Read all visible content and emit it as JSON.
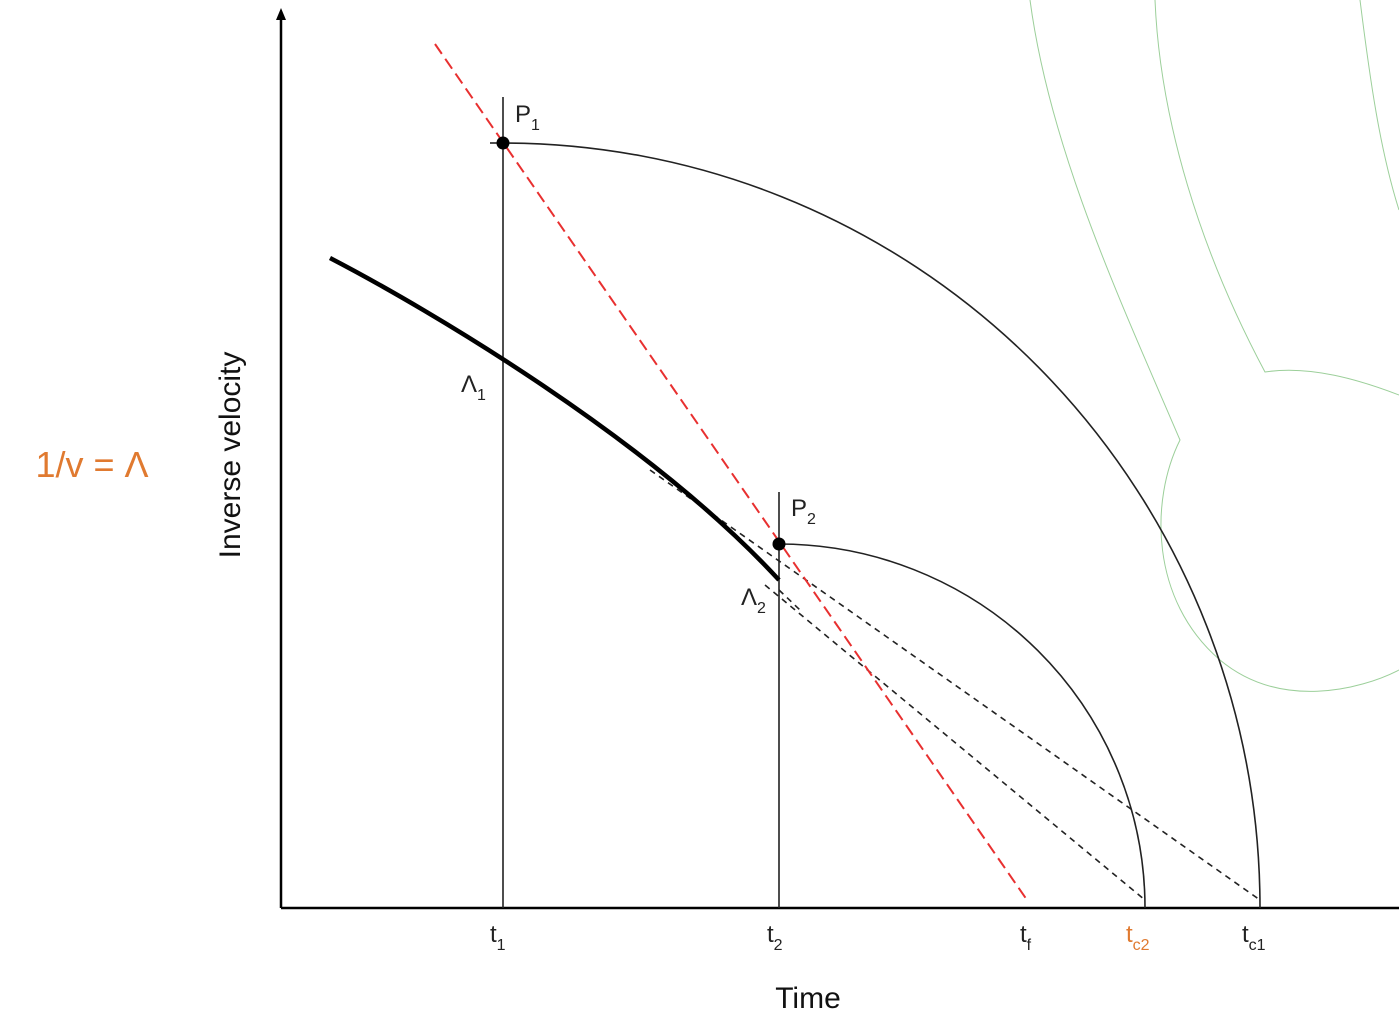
{
  "annotation": "1/v = Λ",
  "axes": {
    "y_label": "Inverse velocity",
    "x_label": "Time"
  },
  "x_ticks": [
    {
      "base": "t",
      "sub": "1"
    },
    {
      "base": "t",
      "sub": "2"
    },
    {
      "base": "t",
      "sub": "f"
    },
    {
      "base": "t",
      "sub": "c2"
    },
    {
      "base": "t",
      "sub": "c1"
    }
  ],
  "points": [
    {
      "base": "P",
      "sub": "1"
    },
    {
      "base": "P",
      "sub": "2"
    },
    {
      "base": "Λ",
      "sub": "1"
    },
    {
      "base": "Λ",
      "sub": "2"
    }
  ]
}
